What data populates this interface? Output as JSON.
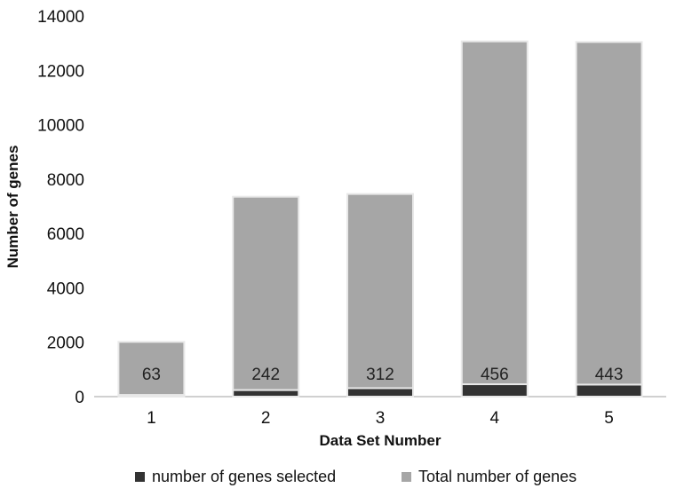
{
  "chart_data": {
    "type": "bar",
    "stacked": true,
    "title": "",
    "xlabel": "Data Set Number",
    "ylabel": "Number of genes",
    "categories": [
      "1",
      "2",
      "3",
      "4",
      "5"
    ],
    "series": [
      {
        "name": "number of genes selected",
        "values": [
          63,
          242,
          312,
          456,
          443
        ],
        "color": "#333333",
        "data_labels": [
          "63",
          "242",
          "312",
          "456",
          "443"
        ]
      },
      {
        "name": "Total number of genes",
        "values": [
          1950,
          7110,
          7140,
          12610,
          12600
        ],
        "color": "#a6a6a6"
      }
    ],
    "ylim": [
      0,
      14000
    ],
    "yticks": [
      "0",
      "2000",
      "4000",
      "6000",
      "8000",
      "10000",
      "12000",
      "14000"
    ],
    "grid": false,
    "legend_position": "bottom"
  }
}
